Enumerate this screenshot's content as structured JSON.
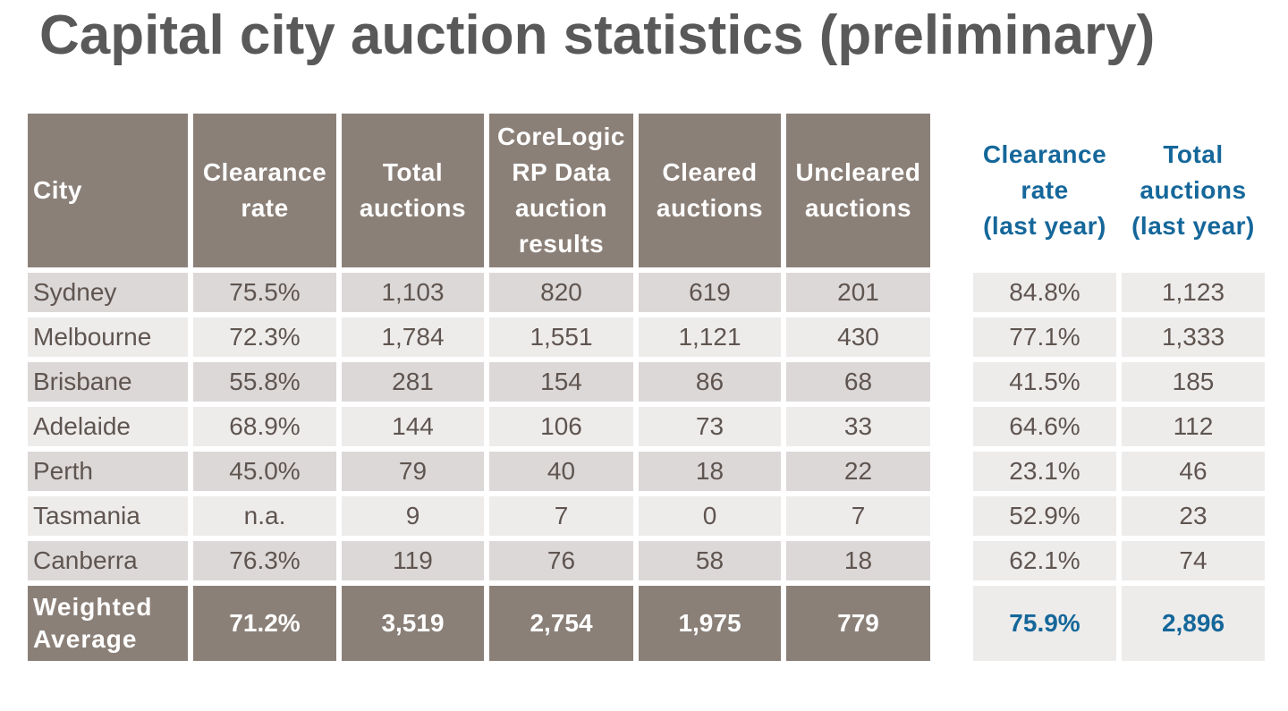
{
  "title": "Capital city auction statistics (preliminary)",
  "colors": {
    "header_bg": "#8B8078",
    "row_dark": "#DCD8D7",
    "row_light": "#EEECEB",
    "text": "#5F5550",
    "accent_blue": "#15679A",
    "title": "#595959"
  },
  "main_table": {
    "headers": [
      "City",
      "Clearance rate",
      "Total auctions",
      "CoreLogic RP Data auction results",
      "Cleared auctions",
      "Uncleared auctions"
    ],
    "header_lines": [
      [
        "City"
      ],
      [
        "Clearance",
        "rate"
      ],
      [
        "Total",
        "auctions"
      ],
      [
        "CoreLogic",
        "RP Data",
        "auction",
        "results"
      ],
      [
        "Cleared",
        "auctions"
      ],
      [
        "Uncleared",
        "auctions"
      ]
    ],
    "rows": [
      {
        "city": "Sydney",
        "clearance_rate": "75.5%",
        "total_auctions": "1,103",
        "results": "820",
        "cleared": "619",
        "uncleared": "201"
      },
      {
        "city": "Melbourne",
        "clearance_rate": "72.3%",
        "total_auctions": "1,784",
        "results": "1,551",
        "cleared": "1,121",
        "uncleared": "430"
      },
      {
        "city": "Brisbane",
        "clearance_rate": "55.8%",
        "total_auctions": "281",
        "results": "154",
        "cleared": "86",
        "uncleared": "68"
      },
      {
        "city": "Adelaide",
        "clearance_rate": "68.9%",
        "total_auctions": "144",
        "results": "106",
        "cleared": "73",
        "uncleared": "33"
      },
      {
        "city": "Perth",
        "clearance_rate": "45.0%",
        "total_auctions": "79",
        "results": "40",
        "cleared": "18",
        "uncleared": "22"
      },
      {
        "city": "Tasmania",
        "clearance_rate": "n.a.",
        "total_auctions": "9",
        "results": "7",
        "cleared": "0",
        "uncleared": "7"
      },
      {
        "city": "Canberra",
        "clearance_rate": "76.3%",
        "total_auctions": "119",
        "results": "76",
        "cleared": "58",
        "uncleared": "18"
      }
    ],
    "total": {
      "label_lines": [
        "Weighted",
        "Average"
      ],
      "clearance_rate": "71.2%",
      "total_auctions": "3,519",
      "results": "2,754",
      "cleared": "1,975",
      "uncleared": "779"
    }
  },
  "last_year_table": {
    "headers": [
      "Clearance rate (last year)",
      "Total auctions (last year)"
    ],
    "header_lines": [
      [
        "Clearance",
        "rate",
        "(last year)"
      ],
      [
        "Total",
        "auctions",
        "(last year)"
      ]
    ],
    "rows": [
      {
        "clearance_rate": "84.8%",
        "total_auctions": "1,123"
      },
      {
        "clearance_rate": "77.1%",
        "total_auctions": "1,333"
      },
      {
        "clearance_rate": "41.5%",
        "total_auctions": "185"
      },
      {
        "clearance_rate": "64.6%",
        "total_auctions": "112"
      },
      {
        "clearance_rate": "23.1%",
        "total_auctions": "46"
      },
      {
        "clearance_rate": "52.9%",
        "total_auctions": "23"
      },
      {
        "clearance_rate": "62.1%",
        "total_auctions": "74"
      }
    ],
    "total": {
      "clearance_rate": "75.9%",
      "total_auctions": "2,896"
    }
  }
}
